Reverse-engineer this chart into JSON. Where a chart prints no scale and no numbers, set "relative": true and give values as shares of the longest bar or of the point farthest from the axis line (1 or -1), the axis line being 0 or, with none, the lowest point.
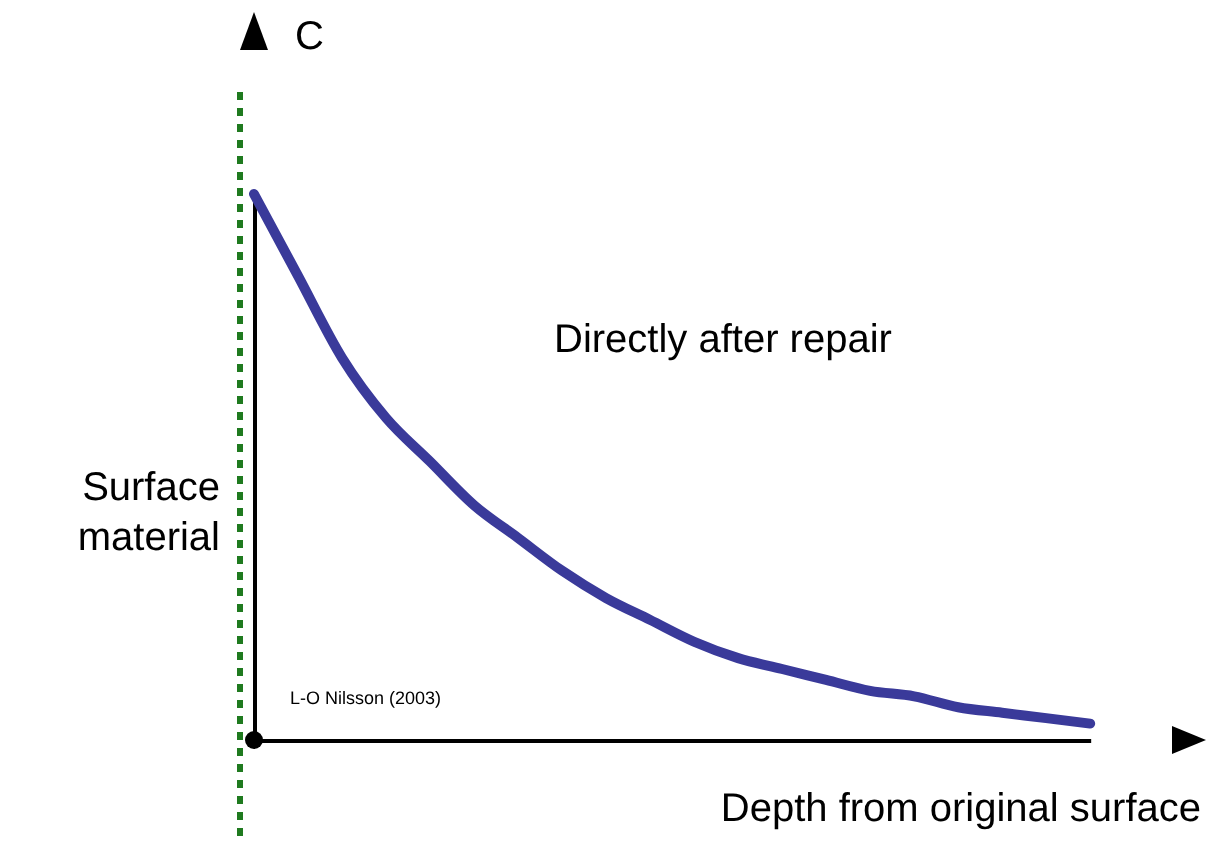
{
  "chart_data": {
    "type": "line",
    "relative": true,
    "ylabel": "C",
    "xlabel": "Depth from original surface",
    "categories": [
      null,
      null,
      null,
      null,
      null,
      null,
      null,
      null,
      null,
      null,
      null,
      null,
      null,
      null,
      null,
      null,
      null,
      null,
      null,
      null
    ],
    "series": [
      {
        "color": "#3a3a9a",
        "values": [
          1,
          0.85,
          0.7,
          0.59,
          0.51,
          0.43,
          0.37,
          0.31,
          0.26,
          0.22,
          0.18,
          0.15,
          0.13,
          0.11,
          0.09,
          0.08,
          0.06,
          0.05,
          0.04,
          0.03
        ]
      }
    ],
    "annotations": [
      "Directly after repair",
      "Surface material",
      "L-O Nilsson (2003)"
    ],
    "grid": false,
    "marker": "none",
    "line_style": "solid"
  }
}
